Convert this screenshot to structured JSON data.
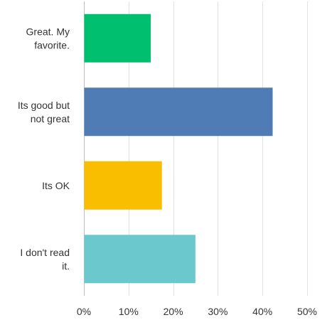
{
  "chart_data": {
    "type": "bar",
    "orientation": "horizontal",
    "categories": [
      [
        "Great. My",
        "favorite."
      ],
      [
        "Its good but",
        "not great"
      ],
      [
        "Its OK"
      ],
      [
        "I don't read",
        "it."
      ]
    ],
    "values": [
      14.9,
      42.2,
      17.4,
      24.9
    ],
    "colors": [
      "#00bf6f",
      "#507cb6",
      "#f9be00",
      "#6bc8cd"
    ],
    "xlim": [
      0,
      50
    ],
    "xticks": [
      0,
      10,
      20,
      30,
      40,
      50
    ],
    "xtick_labels": [
      "0%",
      "10%",
      "20%",
      "30%",
      "40%",
      "50%"
    ],
    "grid": true,
    "title": "",
    "xlabel": "",
    "ylabel": ""
  }
}
